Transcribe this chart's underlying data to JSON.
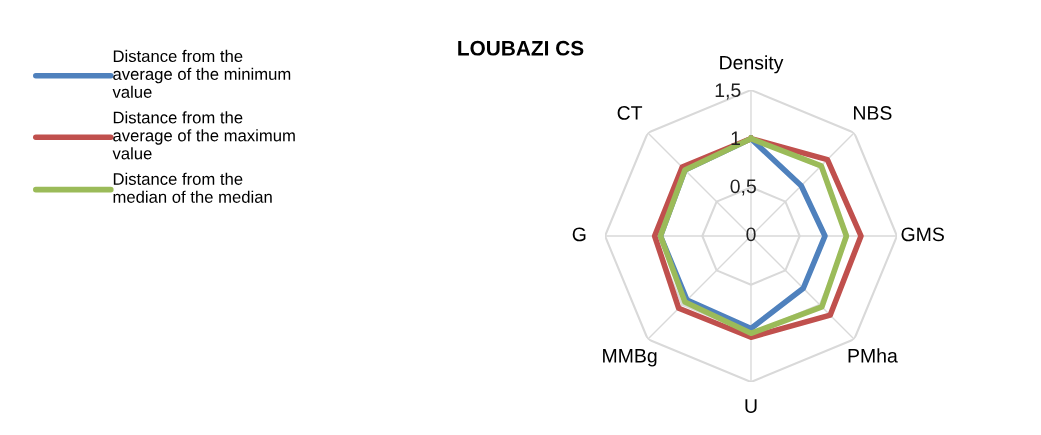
{
  "chart_data": {
    "type": "radar",
    "title": "LOUBAZI CS",
    "categories": [
      "Density",
      "NBS",
      "GMS",
      "PMha",
      "U",
      "MMBg",
      "G",
      "CT"
    ],
    "series": [
      {
        "name": "Distance from the\naverage of the minimum\nvalue",
        "color": "#4f81bd",
        "values": [
          1.0,
          0.73,
          0.76,
          0.76,
          0.95,
          0.93,
          0.93,
          0.96
        ]
      },
      {
        "name": "Distance from the\naverage of the maximum\nvalue",
        "color": "#c0504d",
        "values": [
          1.0,
          1.11,
          1.13,
          1.15,
          1.04,
          1.05,
          0.99,
          1.0
        ]
      },
      {
        "name": "Distance from the\nmedian of the median",
        "color": "#9bbb59",
        "values": [
          1.0,
          1.02,
          0.98,
          1.03,
          1.0,
          0.96,
          0.93,
          0.96
        ]
      }
    ],
    "ylim": [
      0,
      1.5
    ],
    "yticks": [
      0,
      {
        "value": 0.5,
        "label": "0,5"
      },
      1,
      {
        "value": 1.5,
        "label": "1,5"
      }
    ],
    "grid": true,
    "legend": "top left"
  }
}
